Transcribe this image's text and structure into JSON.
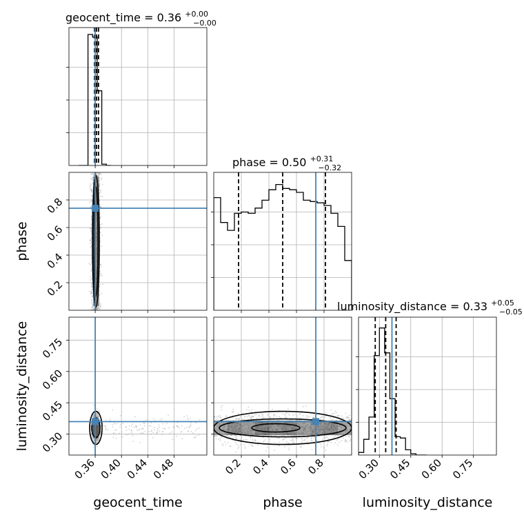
{
  "chart_data": {
    "type": "corner",
    "parameters": [
      "geocent_time",
      "phase",
      "luminosity_distance"
    ],
    "truth_color": "#4682b4",
    "truths": {
      "geocent_time": 0.36,
      "phase": 0.74,
      "luminosity_distance": 0.36
    },
    "titles": [
      {
        "parameter": "geocent_time",
        "text": "geocent_time = 0.36",
        "plus": "+0.00",
        "minus": "−0.00",
        "quantiles": [
          0.359,
          0.362,
          0.365
        ]
      },
      {
        "parameter": "phase",
        "text": "phase = 0.50",
        "plus": "+0.31",
        "minus": "−0.32",
        "quantiles": [
          0.18,
          0.5,
          0.81
        ]
      },
      {
        "parameter": "luminosity_distance",
        "text": "luminosity_distance = 0.33",
        "plus": "+0.05",
        "minus": "−0.05",
        "quantiles": [
          0.28,
          0.33,
          0.38
        ]
      }
    ],
    "axes": {
      "geocent_time": {
        "range": [
          0.32,
          0.53
        ],
        "ticks": [
          0.36,
          0.4,
          0.44,
          0.48
        ],
        "tick_labels": [
          "0.36",
          "0.40",
          "0.44",
          "0.48"
        ]
      },
      "phase": {
        "range": [
          0.0,
          1.0
        ],
        "ticks": [
          0.2,
          0.4,
          0.6,
          0.8
        ],
        "tick_labels": [
          "0.2",
          "0.4",
          "0.6",
          "0.8"
        ]
      },
      "luminosity_distance": {
        "range": [
          0.2,
          0.86
        ],
        "ticks": [
          0.3,
          0.45,
          0.6,
          0.75
        ],
        "tick_labels": [
          "0.30",
          "0.45",
          "0.60",
          "0.75"
        ]
      }
    },
    "histograms": {
      "geocent_time": {
        "bin_edges": [
          0.335,
          0.342,
          0.349,
          0.356,
          0.363,
          0.37,
          0.377,
          0.384
        ],
        "counts": [
          0.0,
          0.0,
          1.0,
          0.98,
          0.57,
          0.01,
          0.0
        ]
      },
      "phase": {
        "bin_edges": [
          0.0,
          0.05,
          0.1,
          0.15,
          0.2,
          0.25,
          0.3,
          0.35,
          0.4,
          0.45,
          0.5,
          0.55,
          0.6,
          0.65,
          0.7,
          0.75,
          0.8,
          0.85,
          0.9,
          0.95,
          1.0
        ],
        "counts": [
          0.86,
          0.67,
          0.61,
          0.74,
          0.75,
          0.74,
          0.78,
          0.84,
          0.92,
          0.96,
          0.93,
          0.92,
          0.9,
          0.84,
          0.83,
          0.82,
          0.8,
          0.74,
          0.64,
          0.38
        ]
      },
      "luminosity_distance": {
        "bin_edges": [
          0.2,
          0.225,
          0.25,
          0.275,
          0.3,
          0.325,
          0.35,
          0.375,
          0.4,
          0.425,
          0.45,
          0.475,
          0.5,
          0.525
        ],
        "counts": [
          0.02,
          0.12,
          0.29,
          0.76,
          0.97,
          0.78,
          0.43,
          0.14,
          0.13,
          0.04,
          0.01,
          0.0,
          0.0
        ]
      }
    },
    "grid": true,
    "axis_labels": {
      "geocent_time": "geocent_time",
      "phase": "phase",
      "luminosity_distance": "luminosity_distance"
    }
  }
}
